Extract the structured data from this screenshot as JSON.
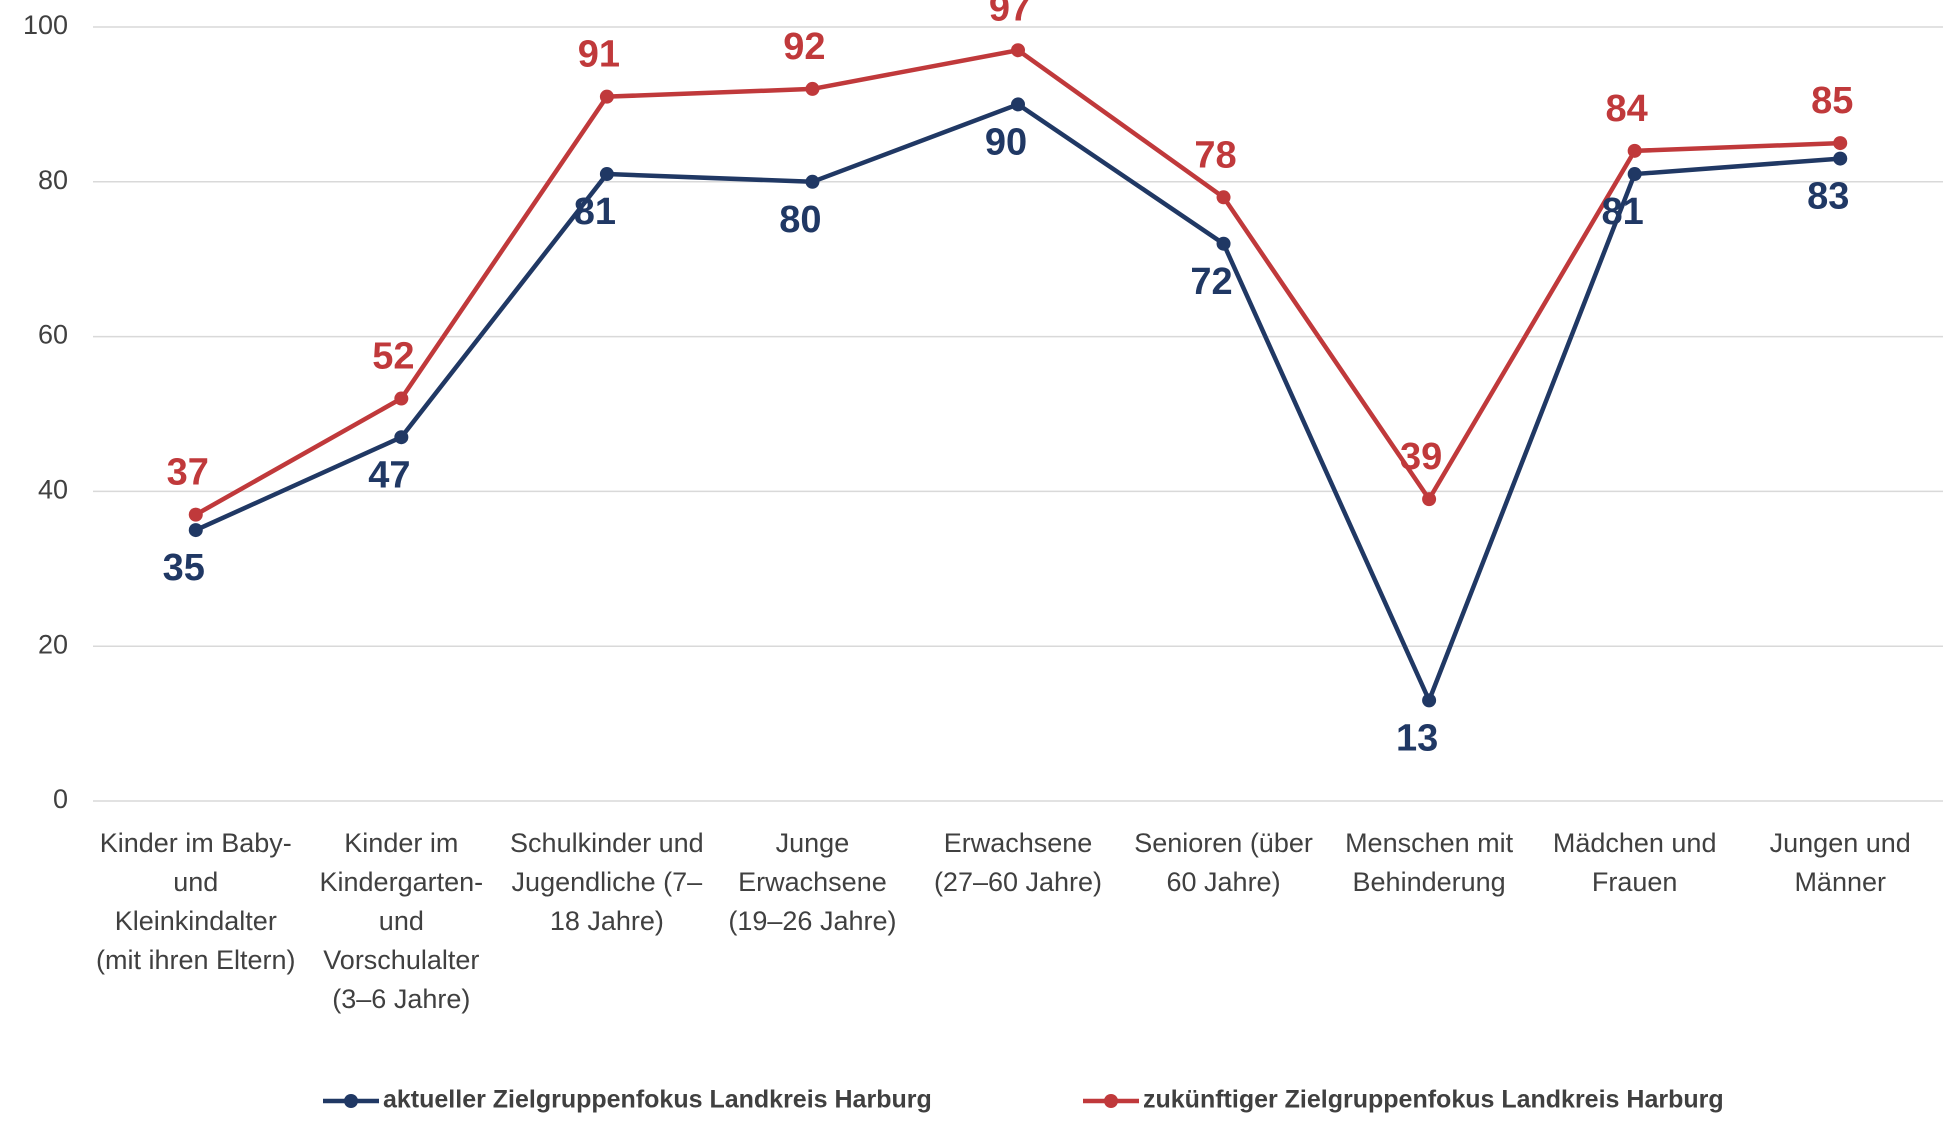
{
  "chart_data": {
    "type": "line",
    "categories": [
      "Kinder im Baby- und Kleinkindalter (mit ihren Eltern)",
      "Kinder im Kindergarten- und Vorschulalter (3–6 Jahre)",
      "Schulkinder und Jugendliche (7–18 Jahre)",
      "Junge Erwachsene (19–26 Jahre)",
      "Erwachsene (27–60 Jahre)",
      "Senioren (über 60 Jahre)",
      "Menschen mit Behinderung",
      "Mädchen und Frauen",
      "Jungen und Männer"
    ],
    "series": [
      {
        "name": "aktueller Zielgruppenfokus Landkreis Harburg",
        "color": "#203864",
        "values": [
          35,
          47,
          81,
          80,
          90,
          72,
          13,
          81,
          83
        ]
      },
      {
        "name": "zukünftiger Zielgruppenfokus Landkreis Harburg",
        "color": "#c0393b",
        "values": [
          37,
          52,
          91,
          92,
          97,
          78,
          39,
          84,
          85
        ]
      }
    ],
    "ylim": [
      0,
      100
    ],
    "yticks": [
      0,
      20,
      40,
      60,
      80,
      100
    ],
    "grid": true,
    "legend": "bottom"
  }
}
